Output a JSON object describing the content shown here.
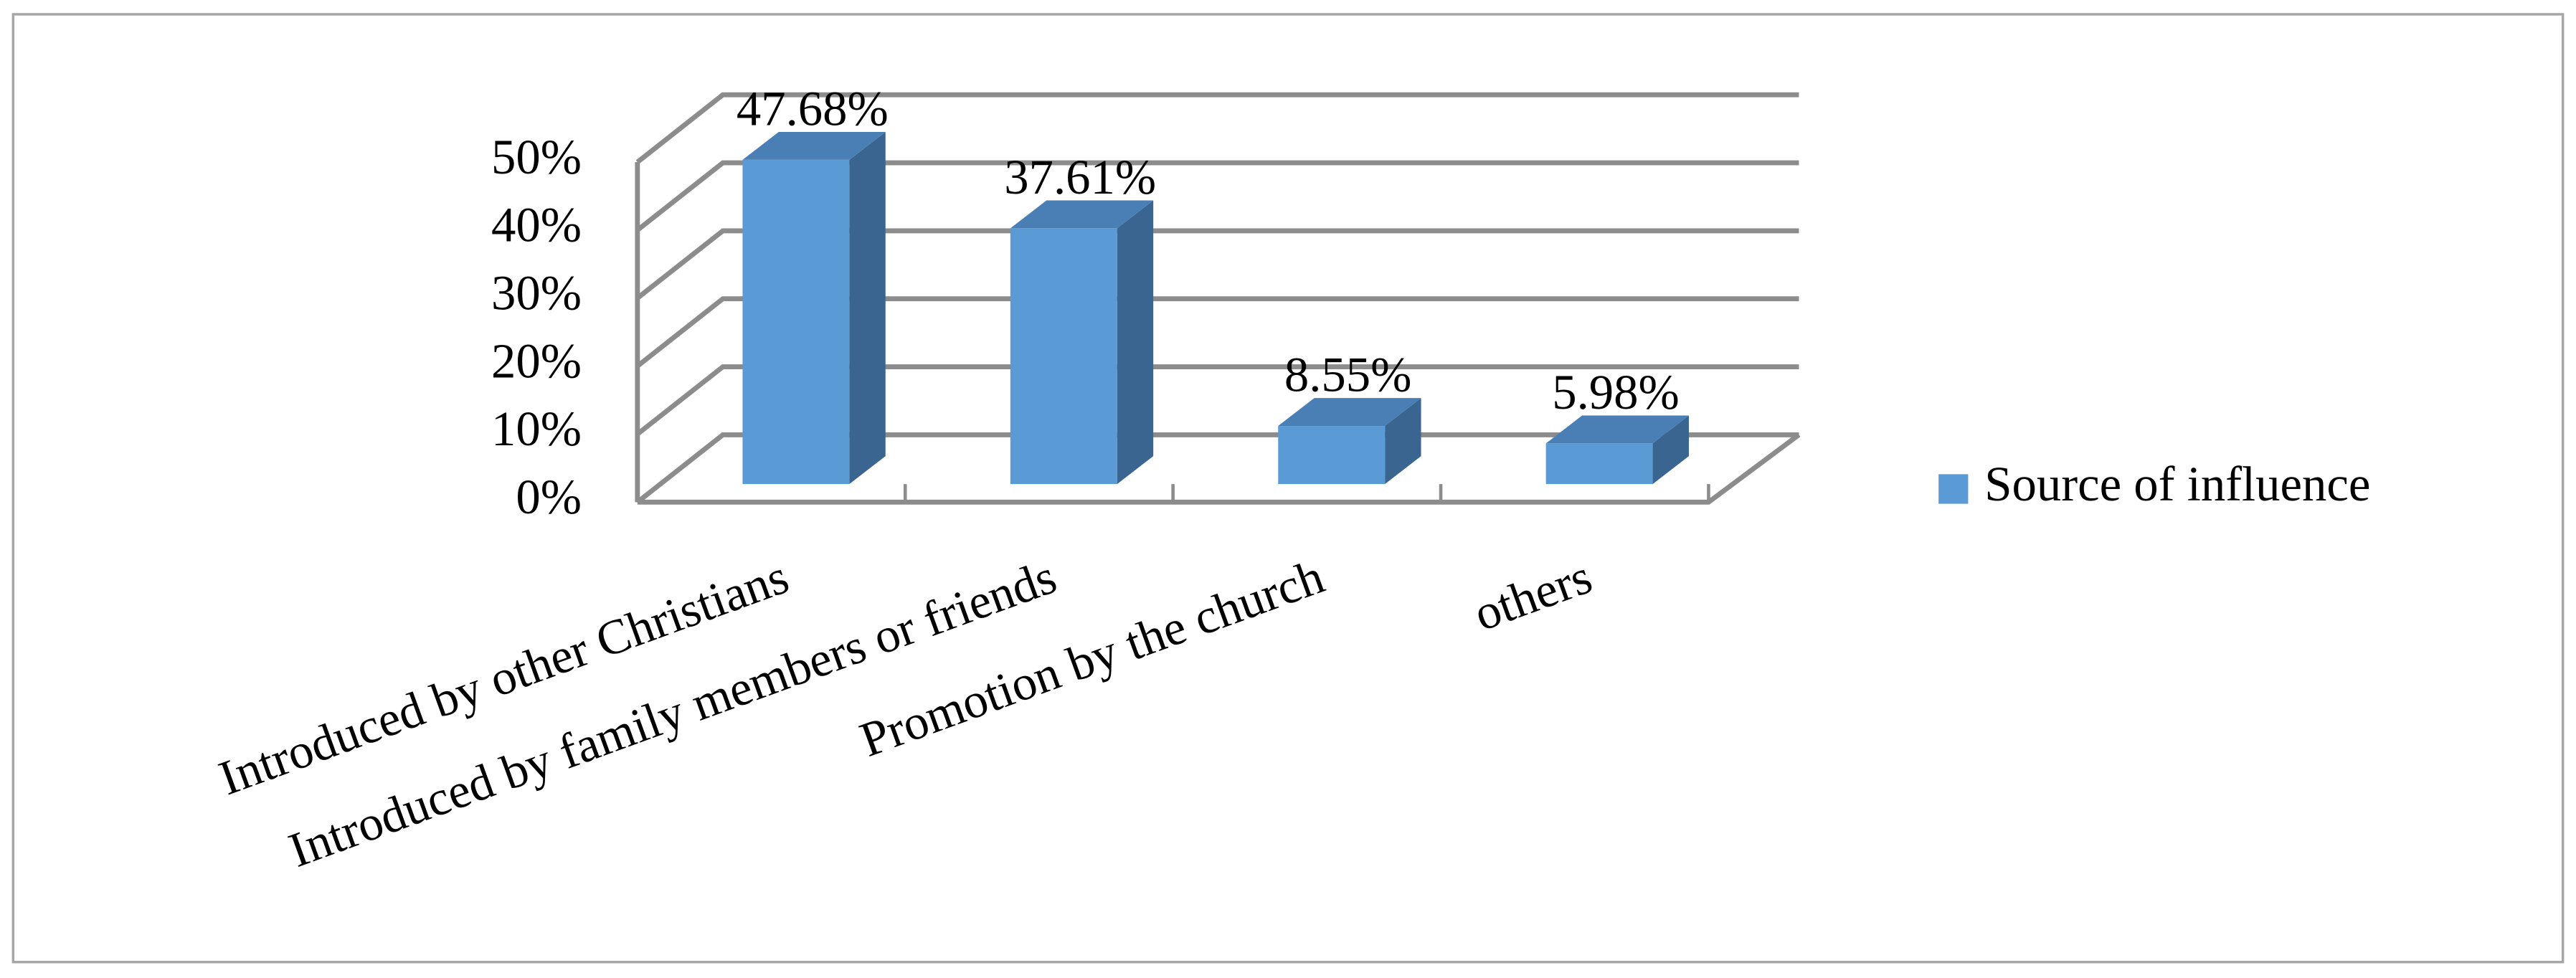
{
  "chart_data": {
    "type": "bar",
    "categories": [
      "Introduced by other Christians",
      "Introduced by family members or friends",
      "Promotion by the church",
      "others"
    ],
    "series": [
      {
        "name": "Source of influence",
        "color": "#5b9bd5",
        "values": [
          47.68,
          37.61,
          8.55,
          5.98
        ],
        "value_labels": [
          "47.68%",
          "37.61%",
          "8.55%",
          "5.98%"
        ]
      }
    ],
    "ylim": [
      0,
      50
    ],
    "yticks": [
      {
        "value": 0,
        "label": "0%"
      },
      {
        "value": 10,
        "label": "10%"
      },
      {
        "value": 20,
        "label": "20%"
      },
      {
        "value": 30,
        "label": "30%"
      },
      {
        "value": 40,
        "label": "40%"
      },
      {
        "value": 50,
        "label": "50%"
      }
    ],
    "grid": true,
    "legend": "right"
  }
}
